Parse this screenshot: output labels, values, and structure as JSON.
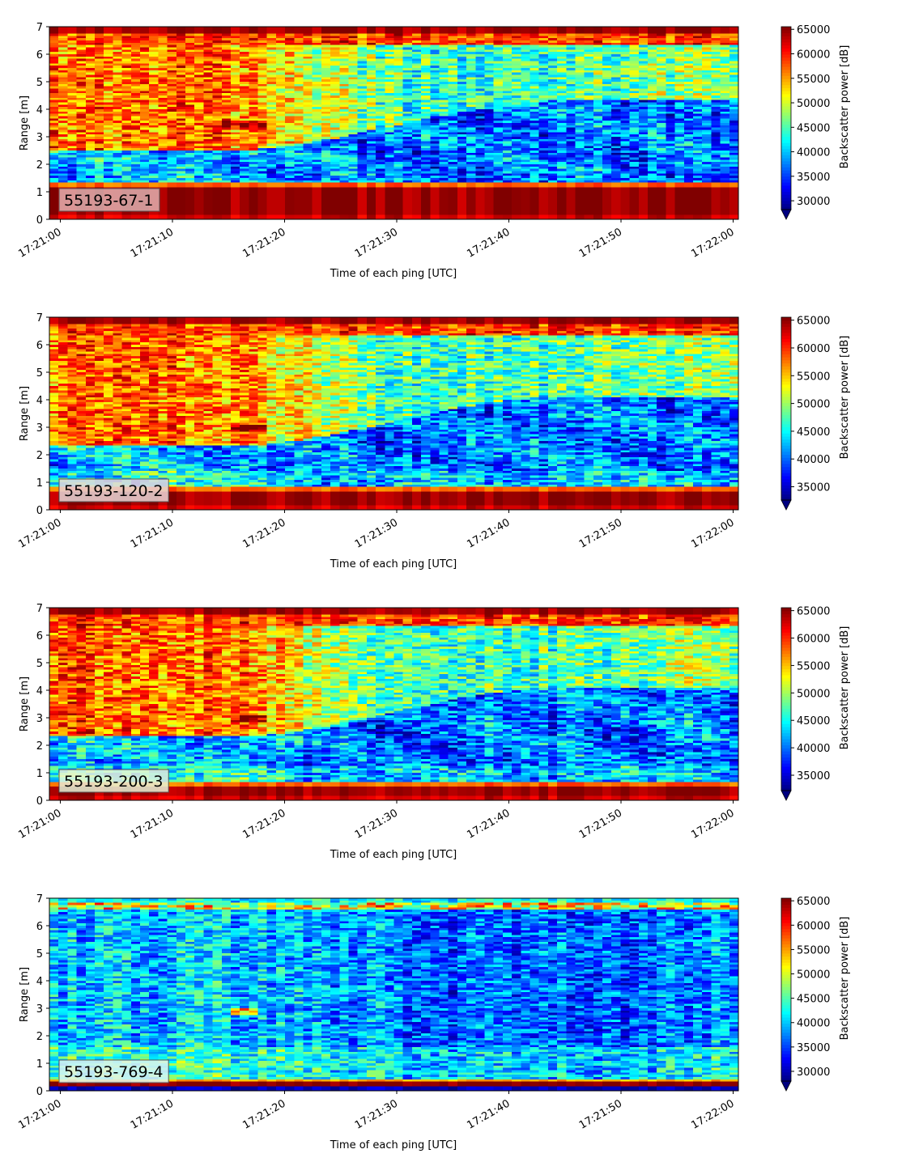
{
  "chart_data": [
    {
      "type": "heatmap",
      "label": "55193-67-1",
      "xlabel": "Time of each ping [UTC]",
      "ylabel": "Range [m]",
      "colorbar_label": "Backscatter power [dB]",
      "xticks": [
        "17:21:00",
        "17:21:10",
        "17:21:20",
        "17:21:30",
        "17:21:40",
        "17:21:50",
        "17:22:00"
      ],
      "yticks": [
        "0",
        "1",
        "2",
        "3",
        "4",
        "5",
        "6",
        "7"
      ],
      "ylim": [
        0,
        7
      ],
      "colorbar_ticks": [
        "30000",
        "35000",
        "40000",
        "45000",
        "50000",
        "55000",
        "60000",
        "65000"
      ],
      "clim": [
        28200,
        65535
      ],
      "colormap": "jet",
      "label_box_color": "#dcb0b0"
    },
    {
      "type": "heatmap",
      "label": "55193-120-2",
      "xlabel": "Time of each ping [UTC]",
      "ylabel": "Range [m]",
      "colorbar_label": "Backscatter power [dB]",
      "xticks": [
        "17:21:00",
        "17:21:10",
        "17:21:20",
        "17:21:30",
        "17:21:40",
        "17:21:50",
        "17:22:00"
      ],
      "yticks": [
        "0",
        "1",
        "2",
        "3",
        "4",
        "5",
        "6",
        "7"
      ],
      "ylim": [
        0,
        7
      ],
      "colorbar_ticks": [
        "35000",
        "40000",
        "45000",
        "50000",
        "55000",
        "60000",
        "65000"
      ],
      "clim": [
        32600,
        65535
      ],
      "colormap": "jet",
      "label_box_color": "#e8d8d8"
    },
    {
      "type": "heatmap",
      "label": "55193-200-3",
      "xlabel": "Time of each ping [UTC]",
      "ylabel": "Range [m]",
      "colorbar_label": "Backscatter power [dB]",
      "xticks": [
        "17:21:00",
        "17:21:10",
        "17:21:20",
        "17:21:30",
        "17:21:40",
        "17:21:50",
        "17:22:00"
      ],
      "yticks": [
        "0",
        "1",
        "2",
        "3",
        "4",
        "5",
        "6",
        "7"
      ],
      "ylim": [
        0,
        7
      ],
      "colorbar_ticks": [
        "35000",
        "40000",
        "45000",
        "50000",
        "55000",
        "60000",
        "65000"
      ],
      "clim": [
        32200,
        65535
      ],
      "colormap": "jet",
      "label_box_color": "#e6f4d8"
    },
    {
      "type": "heatmap",
      "label": "55193-769-4",
      "xlabel": "Time of each ping [UTC]",
      "ylabel": "Range [m]",
      "colorbar_label": "Backscatter power [dB]",
      "xticks": [
        "17:21:00",
        "17:21:10",
        "17:21:20",
        "17:21:30",
        "17:21:40",
        "17:21:50",
        "17:22:00"
      ],
      "yticks": [
        "0",
        "1",
        "2",
        "3",
        "4",
        "5",
        "6",
        "7"
      ],
      "ylim": [
        0,
        7
      ],
      "colorbar_ticks": [
        "30000",
        "35000",
        "40000",
        "45000",
        "50000",
        "55000",
        "60000",
        "65000"
      ],
      "clim": [
        28000,
        65535
      ],
      "colormap": "jet",
      "label_box_color": "#dff3ef"
    }
  ]
}
